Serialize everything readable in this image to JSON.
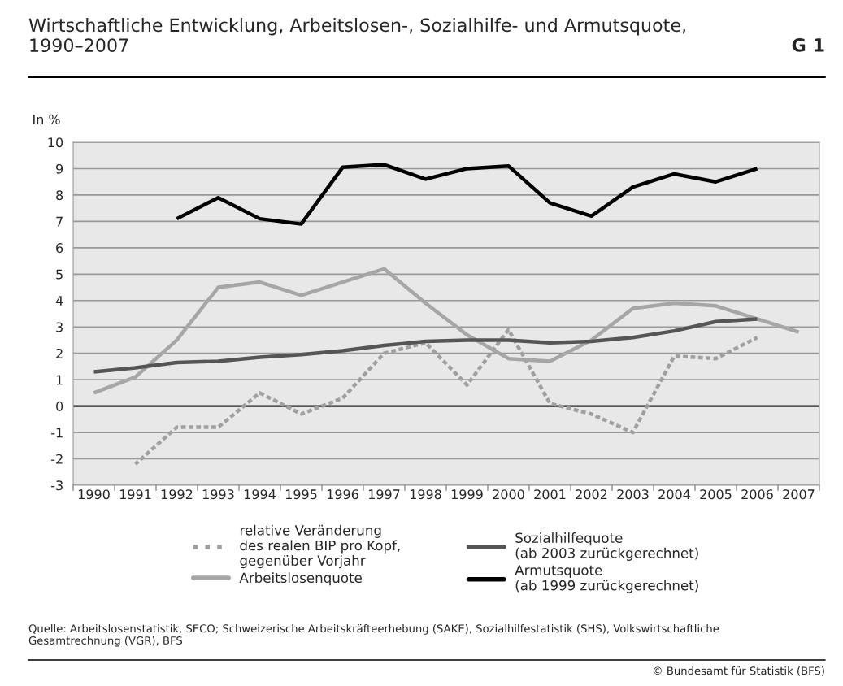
{
  "chart_data": {
    "type": "line",
    "title": "Wirtschaftliche Entwicklung, Arbeitslosen-, Sozialhilfe- und Armutsquote,\n1990–2007",
    "subtitle": "G 1",
    "ylabel": "In %",
    "categories": [
      "1990",
      "1991",
      "1992",
      "1993",
      "1994",
      "1995",
      "1996",
      "1997",
      "1998",
      "1999",
      "2000",
      "2001",
      "2002",
      "2003",
      "2004",
      "2005",
      "2006",
      "2007"
    ],
    "series": [
      {
        "name": "relative Veränderung\ndes realen BIP pro Kopf,\ngegenüber Vorjahr",
        "color": "#a0a0a0",
        "line_style": "dotted",
        "values": [
          null,
          -2.2,
          -0.8,
          -0.8,
          0.5,
          -0.3,
          0.3,
          2.0,
          2.4,
          0.8,
          2.9,
          0.1,
          -0.3,
          -1.0,
          1.9,
          1.8,
          2.6,
          null
        ]
      },
      {
        "name": "Arbeitslosenquote",
        "color": "#a6a6a6",
        "line_style": "solid",
        "values": [
          0.5,
          1.1,
          2.5,
          4.5,
          4.7,
          4.2,
          4.7,
          5.2,
          3.9,
          2.7,
          1.8,
          1.7,
          2.5,
          3.7,
          3.9,
          3.8,
          3.3,
          2.8
        ]
      },
      {
        "name": "Sozialhilfequote\n(ab 2003 zurückgerechnet)",
        "color": "#555555",
        "line_style": "solid",
        "values": [
          1.3,
          1.45,
          1.65,
          1.7,
          1.85,
          1.95,
          2.1,
          2.3,
          2.45,
          2.5,
          2.5,
          2.4,
          2.45,
          2.6,
          2.85,
          3.2,
          3.3,
          null
        ]
      },
      {
        "name": "Armutsquote\n(ab 1999 zurückgerechnet)",
        "color": "#000000",
        "line_style": "solid",
        "values": [
          null,
          null,
          7.1,
          7.9,
          7.1,
          6.9,
          9.05,
          9.15,
          8.6,
          9.0,
          9.1,
          7.7,
          7.2,
          8.3,
          8.8,
          8.5,
          9.0,
          null
        ]
      }
    ],
    "ylim": [
      -3,
      10
    ],
    "yticks": [
      -3,
      -2,
      -1,
      0,
      1,
      2,
      3,
      4,
      5,
      6,
      7,
      8,
      9,
      10
    ],
    "grid": "y",
    "legend": "bottom",
    "ref_lines": [
      {
        "axis": "y",
        "value": 0,
        "color": "#333333"
      }
    ],
    "annotations": [
      "Quelle: Arbeitslosenstatistik, SECO; Schweizerische Arbeitskräfteerhebung (SAKE), Sozialhilfestatistik (SHS), Volkswirtschaftliche\nGesamtrechnung (VGR), BFS",
      "© Bundesamt für Statistik (BFS)"
    ]
  }
}
